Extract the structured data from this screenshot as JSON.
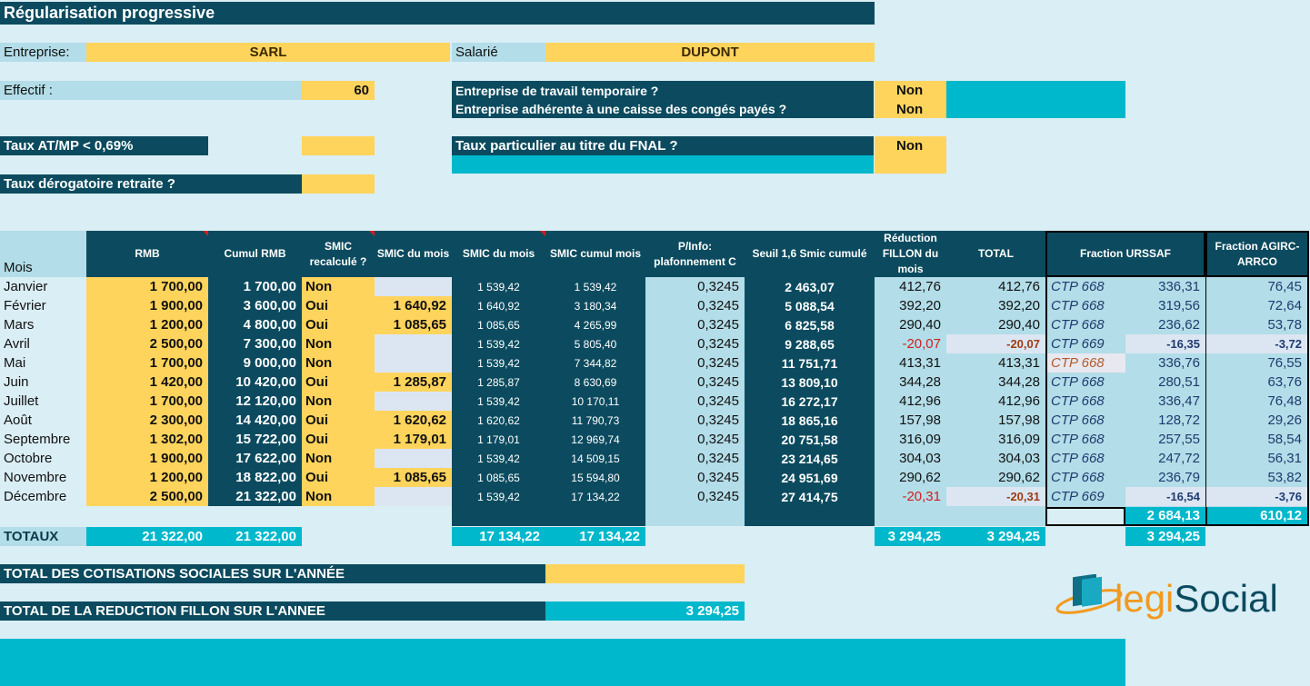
{
  "title": "Régularisation progressive",
  "entreprise_label": "Entreprise:",
  "entreprise_value": "SARL",
  "salarie_label": "Salarié",
  "salarie_value": "DUPONT",
  "effectif_label": "Effectif :",
  "effectif_value": "60",
  "q_temp_label": "Entreprise de travail temporaire ?",
  "q_temp_value": "Non",
  "q_conges_label": "Entreprise adhérente à une caisse des congés payés ?",
  "q_conges_value": "Non",
  "taux_atmp_label": "Taux AT/MP < 0,69%",
  "fnal_label": "Taux particulier au titre du FNAL ?",
  "fnal_value": "Non",
  "taux_derog_label": "Taux dérogatoire retraite ?",
  "headers": {
    "mois": "Mois",
    "rmb": "RMB",
    "cumul_rmb": "Cumul RMB",
    "smic_recalc": "SMIC recalculé ?",
    "smic_du_mois_a": "SMIC du mois",
    "smic_du_mois_b": "SMIC du mois",
    "smic_cumul": "SMIC cumul mois",
    "pinfo": "P/Info: plafonnement C",
    "seuil": "Seuil 1,6 Smic cumulé",
    "reduction": "Réduction FILLON du mois",
    "total": "TOTAL",
    "urssaf": "Fraction URSSAF",
    "agirc": "Fraction AGIRC-ARRCO"
  },
  "rows": [
    {
      "mois": "Janvier",
      "rmb": "1 700,00",
      "cumul": "1 700,00",
      "recalc": "Non",
      "smic_in": "",
      "smic": "1 539,42",
      "smic_cumul": "1 539,42",
      "pinfo": "0,3245",
      "seuil": "2 463,07",
      "red": "412,76",
      "total": "412,76",
      "ctp": "CTP 668",
      "urssaf": "336,31",
      "agirc": "76,45"
    },
    {
      "mois": "Février",
      "rmb": "1 900,00",
      "cumul": "3 600,00",
      "recalc": "Oui",
      "smic_in": "1 640,92",
      "smic": "1 640,92",
      "smic_cumul": "3 180,34",
      "pinfo": "0,3245",
      "seuil": "5 088,54",
      "red": "392,20",
      "total": "392,20",
      "ctp": "CTP 668",
      "urssaf": "319,56",
      "agirc": "72,64"
    },
    {
      "mois": "Mars",
      "rmb": "1 200,00",
      "cumul": "4 800,00",
      "recalc": "Oui",
      "smic_in": "1 085,65",
      "smic": "1 085,65",
      "smic_cumul": "4 265,99",
      "pinfo": "0,3245",
      "seuil": "6 825,58",
      "red": "290,40",
      "total": "290,40",
      "ctp": "CTP 668",
      "urssaf": "236,62",
      "agirc": "53,78"
    },
    {
      "mois": "Avril",
      "rmb": "2 500,00",
      "cumul": "7 300,00",
      "recalc": "Non",
      "smic_in": "",
      "smic": "1 539,42",
      "smic_cumul": "5 805,40",
      "pinfo": "0,3245",
      "seuil": "9 288,65",
      "red": "-20,07",
      "total": "-20,07",
      "ctp": "CTP 669",
      "urssaf": "-16,35",
      "agirc": "-3,72"
    },
    {
      "mois": "Mai",
      "rmb": "1 700,00",
      "cumul": "9 000,00",
      "recalc": "Non",
      "smic_in": "",
      "smic": "1 539,42",
      "smic_cumul": "7 344,82",
      "pinfo": "0,3245",
      "seuil": "11 751,71",
      "red": "413,31",
      "total": "413,31",
      "ctp": "CTP 668",
      "urssaf": "336,76",
      "agirc": "76,55"
    },
    {
      "mois": "Juin",
      "rmb": "1 420,00",
      "cumul": "10 420,00",
      "recalc": "Oui",
      "smic_in": "1 285,87",
      "smic": "1 285,87",
      "smic_cumul": "8 630,69",
      "pinfo": "0,3245",
      "seuil": "13 809,10",
      "red": "344,28",
      "total": "344,28",
      "ctp": "CTP 668",
      "urssaf": "280,51",
      "agirc": "63,76"
    },
    {
      "mois": "Juillet",
      "rmb": "1 700,00",
      "cumul": "12 120,00",
      "recalc": "Non",
      "smic_in": "",
      "smic": "1 539,42",
      "smic_cumul": "10 170,11",
      "pinfo": "0,3245",
      "seuil": "16 272,17",
      "red": "412,96",
      "total": "412,96",
      "ctp": "CTP 668",
      "urssaf": "336,47",
      "agirc": "76,48"
    },
    {
      "mois": "Août",
      "rmb": "2 300,00",
      "cumul": "14 420,00",
      "recalc": "Oui",
      "smic_in": "1 620,62",
      "smic": "1 620,62",
      "smic_cumul": "11 790,73",
      "pinfo": "0,3245",
      "seuil": "18 865,16",
      "red": "157,98",
      "total": "157,98",
      "ctp": "CTP 668",
      "urssaf": "128,72",
      "agirc": "29,26"
    },
    {
      "mois": "Septembre",
      "rmb": "1 302,00",
      "cumul": "15 722,00",
      "recalc": "Oui",
      "smic_in": "1 179,01",
      "smic": "1 179,01",
      "smic_cumul": "12 969,74",
      "pinfo": "0,3245",
      "seuil": "20 751,58",
      "red": "316,09",
      "total": "316,09",
      "ctp": "CTP 668",
      "urssaf": "257,55",
      "agirc": "58,54"
    },
    {
      "mois": "Octobre",
      "rmb": "1 900,00",
      "cumul": "17 622,00",
      "recalc": "Non",
      "smic_in": "",
      "smic": "1 539,42",
      "smic_cumul": "14 509,15",
      "pinfo": "0,3245",
      "seuil": "23 214,65",
      "red": "304,03",
      "total": "304,03",
      "ctp": "CTP 668",
      "urssaf": "247,72",
      "agirc": "56,31"
    },
    {
      "mois": "Novembre",
      "rmb": "1 200,00",
      "cumul": "18 822,00",
      "recalc": "Oui",
      "smic_in": "1 085,65",
      "smic": "1 085,65",
      "smic_cumul": "15 594,80",
      "pinfo": "0,3245",
      "seuil": "24 951,69",
      "red": "290,62",
      "total": "290,62",
      "ctp": "CTP 668",
      "urssaf": "236,79",
      "agirc": "53,82"
    },
    {
      "mois": "Décembre",
      "rmb": "2 500,00",
      "cumul": "21 322,00",
      "recalc": "Non",
      "smic_in": "",
      "smic": "1 539,42",
      "smic_cumul": "17 134,22",
      "pinfo": "0,3245",
      "seuil": "27 414,75",
      "red": "-20,31",
      "total": "-20,31",
      "ctp": "CTP 669",
      "urssaf": "-16,54",
      "agirc": "-3,76"
    }
  ],
  "subtotals": {
    "urssaf": "2 684,13",
    "agirc": "610,12"
  },
  "totaux": {
    "label": "TOTAUX",
    "rmb": "21 322,00",
    "cumul": "21 322,00",
    "smic": "17 134,22",
    "smic_cumul": "17 134,22",
    "red": "3 294,25",
    "total": "3 294,25",
    "urssaf": "3 294,25"
  },
  "total_cotisations_label": "TOTAL DES COTISATIONS SOCIALES SUR L'ANNÉE",
  "total_fillon_label": "TOTAL DE LA REDUCTION FILLON SUR L'ANNEE",
  "total_fillon_value": "3 294,25",
  "logo": {
    "part1": "legi",
    "part2": "Social"
  },
  "colors": {
    "dark": "#0c4b5f",
    "yellow": "#ffd45c",
    "light_blue": "#b3dde8",
    "cyan": "#00b8cc",
    "bg": "#daeef5",
    "red": "#d21f1f"
  }
}
